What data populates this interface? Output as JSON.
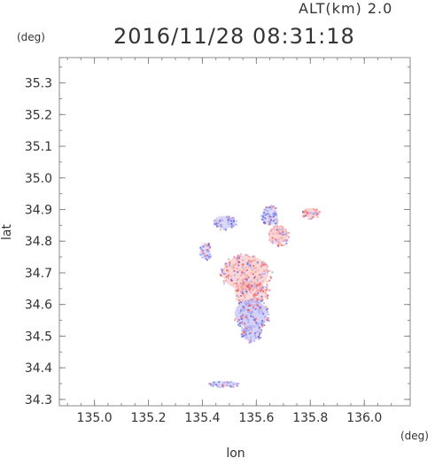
{
  "header": {
    "altitude_label": "ALT(km) 2.0",
    "timestamp": "2016/11/28 08:31:18"
  },
  "chart_data": {
    "type": "scatter",
    "title": "2016/11/28 08:31:18",
    "subtitle": "ALT(km) 2.0",
    "xlabel": "lon",
    "ylabel": "lat",
    "x_unit": "(deg)",
    "y_unit": "(deg)",
    "xlim": [
      134.87,
      136.17
    ],
    "ylim": [
      34.28,
      35.38
    ],
    "x_ticks": [
      "135.0",
      "135.2",
      "135.4",
      "135.6",
      "135.8",
      "136.0"
    ],
    "y_ticks": [
      "34.3",
      "34.4",
      "34.5",
      "34.6",
      "34.7",
      "34.8",
      "34.9",
      "35.0",
      "35.1",
      "35.2",
      "35.3"
    ],
    "grid": false,
    "colors": {
      "positive": "#f4a6a6",
      "positive_strong": "#e8606a",
      "negative": "#a8a8f4",
      "negative_strong": "#6a6ae6",
      "axis": "#888888"
    },
    "echo_regions": [
      {
        "name": "main-core-positive",
        "sign": "positive",
        "intensity": 0.55,
        "lon": 135.56,
        "lat": 34.7,
        "rlon": 0.085,
        "rlat": 0.055
      },
      {
        "name": "main-south-positive",
        "sign": "positive",
        "intensity": 0.45,
        "lon": 135.58,
        "lat": 34.64,
        "rlon": 0.06,
        "rlat": 0.035
      },
      {
        "name": "main-south-negative",
        "sign": "negative",
        "intensity": 0.7,
        "lon": 135.58,
        "lat": 34.57,
        "rlon": 0.06,
        "rlat": 0.045
      },
      {
        "name": "tail-negative",
        "sign": "negative",
        "intensity": 0.6,
        "lon": 135.58,
        "lat": 34.51,
        "rlon": 0.035,
        "rlat": 0.025
      },
      {
        "name": "west-arc-negative",
        "sign": "negative",
        "intensity": 0.35,
        "lon": 135.41,
        "lat": 34.77,
        "rlon": 0.02,
        "rlat": 0.025
      },
      {
        "name": "north-cell-negative",
        "sign": "negative",
        "intensity": 0.5,
        "lon": 135.65,
        "lat": 34.88,
        "rlon": 0.03,
        "rlat": 0.03
      },
      {
        "name": "north-cell-positive",
        "sign": "positive",
        "intensity": 0.6,
        "lon": 135.68,
        "lat": 34.82,
        "rlon": 0.035,
        "rlat": 0.03
      },
      {
        "name": "north-west-mixed",
        "sign": "negative",
        "intensity": 0.55,
        "lon": 135.48,
        "lat": 34.86,
        "rlon": 0.04,
        "rlat": 0.02
      },
      {
        "name": "east-fringe-mixed",
        "sign": "positive",
        "intensity": 0.65,
        "lon": 135.8,
        "lat": 34.89,
        "rlon": 0.03,
        "rlat": 0.015
      },
      {
        "name": "south-streak-negative",
        "sign": "negative",
        "intensity": 0.5,
        "lon": 135.48,
        "lat": 34.35,
        "rlon": 0.055,
        "rlat": 0.008
      }
    ]
  }
}
